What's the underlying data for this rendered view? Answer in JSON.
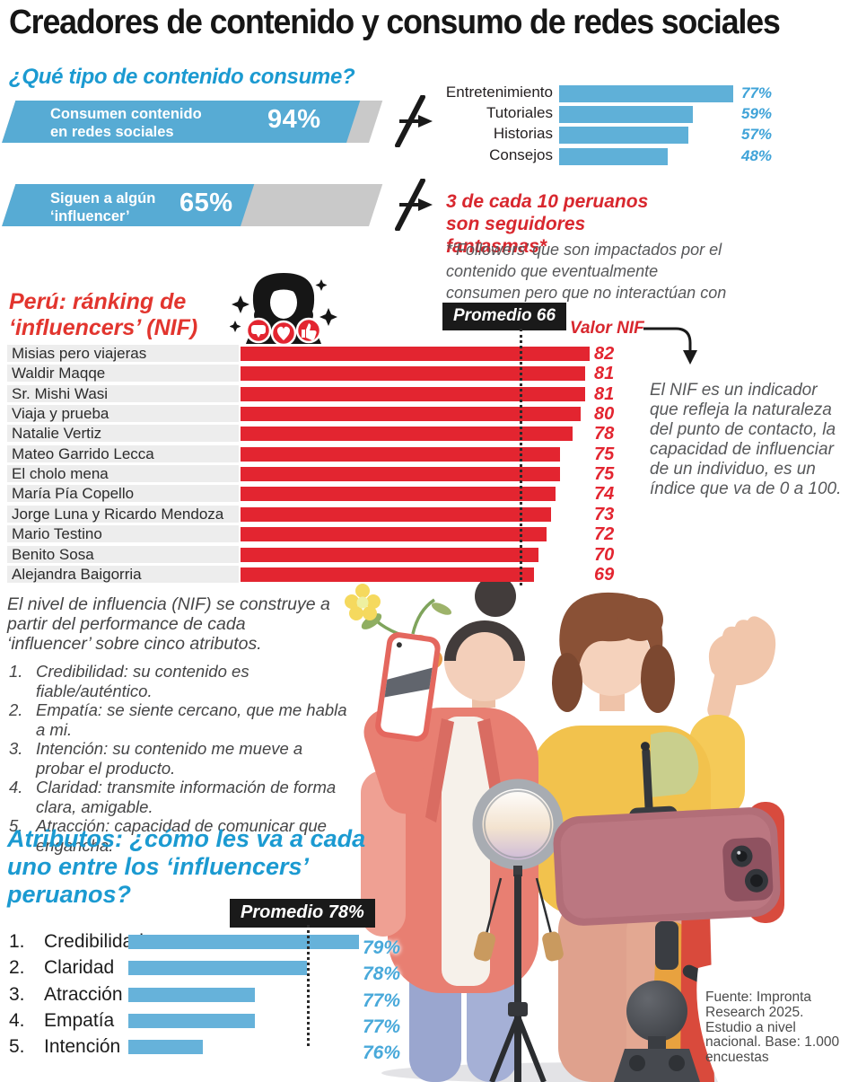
{
  "page": {
    "title": "Creadores de contenido y consumo de redes sociales"
  },
  "colors": {
    "accent_blue": "#1b9ad1",
    "bar_blue": "#57abd4",
    "pct_blue": "#3fa3d8",
    "bar_gray": "#c9c9c9",
    "red": "#e32530",
    "red_text": "#d8272e",
    "row_stripe": "#ededed",
    "note_gray": "#57585a",
    "box_black": "#1a1a1a"
  },
  "icons": {
    "avatar": "female-influencer-avatar-icon",
    "avatar_badges": [
      "comment-icon",
      "heart-icon",
      "thumbs-up-icon"
    ],
    "dividers": "slash-arrow-icon",
    "nif_pointer": "elbow-arrow-down-icon"
  },
  "consumption": {
    "heading": "¿Qué tipo de contenido consume?",
    "bar1_label": "Consumen contenido en redes sociales",
    "bar1_value": "94%",
    "bar2_label": "Siguen a algún ‘influencer’",
    "bar2_value": "65%",
    "ghost_title": "3 de cada 10 peruanos son seguidores fantasmas*",
    "ghost_note": "*‘Followers’ que son impactados por el contenido que eventualmente consumen pero que no interactúan con el ‘influencer’."
  },
  "ranking": {
    "heading": "Perú: ránking de ‘influencers’ (NIF)",
    "promedio_label": "Promedio 66",
    "axis_label": "Valor NIF",
    "note": "El NIF es un indicador que refleja la naturaleza del punto de contacto, la capacidad de influenciar de un individuo, es un índice que va de 0 a 100."
  },
  "nif_explainer": {
    "intro": "El nivel de influencia (NIF) se construye a partir del performance de cada ‘influencer’ sobre cinco atributos.",
    "items": [
      {
        "num": "1.",
        "text": "Credibilidad: su contenido es fiable/auténtico."
      },
      {
        "num": "2.",
        "text": "Empatía: se siente cercano, que me habla a mi."
      },
      {
        "num": "3.",
        "text": "Intención: su contenido me mueve a probar el producto."
      },
      {
        "num": "4.",
        "text": "Claridad: transmite información de forma clara, amigable."
      },
      {
        "num": "5.",
        "text": "Atracción: capacidad de comunicar que engancha."
      }
    ]
  },
  "attributes": {
    "heading": "Atributos: ¿cómo les va a cada uno entre los ‘influencers’ peruanos?",
    "promedio_label": "Promedio 78%"
  },
  "source": "Fuente: Impronta Research 2025. Estudio a nivel nacional. Base: 1.000 encuestas",
  "chart_data": [
    {
      "type": "bar",
      "title": "Consumen contenido en redes sociales",
      "values": [
        94
      ],
      "unit": "%",
      "range": [
        0,
        100
      ]
    },
    {
      "type": "bar",
      "title": "Siguen a algún ‘influencer’",
      "values": [
        65
      ],
      "unit": "%",
      "range": [
        0,
        100
      ]
    },
    {
      "type": "bar",
      "title": "¿Qué tipo de contenido consume?",
      "categories": [
        "Entretenimiento",
        "Tutoriales",
        "Historias",
        "Consejos"
      ],
      "values": [
        77,
        59,
        57,
        48
      ],
      "unit": "%",
      "orientation": "horizontal"
    },
    {
      "type": "bar",
      "title": "Perú: ránking de ‘influencers’ (NIF)",
      "categories": [
        "Misias pero viajeras",
        "Waldir Maqqe",
        "Sr. Mishi Wasi",
        "Viaja y prueba",
        "Natalie Vertiz",
        "Mateo Garrido Lecca",
        "El cholo mena",
        "María Pía Copello",
        "Jorge Luna y Ricardo Mendoza",
        "Mario Testino",
        "Benito Sosa",
        "Alejandra Baigorria"
      ],
      "values": [
        82,
        81,
        81,
        80,
        78,
        75,
        75,
        74,
        73,
        72,
        70,
        69
      ],
      "average": 66,
      "average_label": "Promedio 66",
      "value_axis_label": "Valor NIF",
      "range": [
        0,
        100
      ],
      "orientation": "horizontal"
    },
    {
      "type": "bar",
      "title": "Atributos: ¿cómo les va a cada uno entre los ‘influencers’ peruanos?",
      "categories": [
        "Credibilidad",
        "Claridad",
        "Atracción",
        "Empatía",
        "Intención"
      ],
      "values": [
        79,
        78,
        77,
        77,
        76
      ],
      "unit": "%",
      "average": 78,
      "average_label": "Promedio 78%",
      "orientation": "horizontal",
      "axis_note": "truncated value axis, bars not zero-based"
    }
  ]
}
